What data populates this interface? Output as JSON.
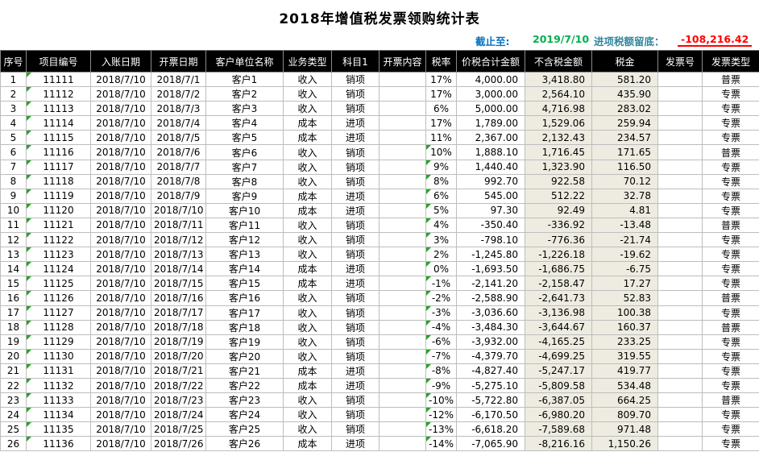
{
  "title": "2018年增值税发票领购统计表",
  "info": {
    "as_of_label": "截止至:",
    "as_of_date": "2019/7/10",
    "credit_label": "进项税额留底：",
    "credit_value": "-108,216.42"
  },
  "colors": {
    "header_bg": "#000000",
    "header_text": "#FFFFFF",
    "shaded_column": "#EEECE1",
    "grid_line": "#BDBDBD",
    "as_of_label_color": "#0070C0",
    "as_of_date_color": "#00B050",
    "credit_label_color": "#31869B",
    "credit_value_color": "#FF0000",
    "error_indicator_color": "#28A428"
  },
  "columns": [
    "序号",
    "项目编号",
    "入账日期",
    "开票日期",
    "客户单位名称",
    "业务类型",
    "科目1",
    "开票内容",
    "税率",
    "价税合计金额",
    "不含税金额",
    "税金",
    "发票号",
    "发票类型"
  ],
  "row_fields": [
    "seq",
    "project_no",
    "entry_date",
    "invoice_date",
    "customer",
    "biz_type",
    "subject",
    "content",
    "rate",
    "total_amount",
    "net_amount",
    "tax_amount",
    "invoice_no",
    "invoice_type"
  ],
  "rows": [
    {
      "seq": "1",
      "project_no": "11111",
      "entry_date": "2018/7/10",
      "invoice_date": "2018/7/1",
      "customer": "客户1",
      "biz_type": "收入",
      "subject": "销项",
      "content": "",
      "rate": "17%",
      "total_amount": "4,000.00",
      "net_amount": "3,418.80",
      "tax_amount": "581.20",
      "invoice_no": "",
      "invoice_type": "普票",
      "rate_flag": false
    },
    {
      "seq": "2",
      "project_no": "11112",
      "entry_date": "2018/7/10",
      "invoice_date": "2018/7/2",
      "customer": "客户2",
      "biz_type": "收入",
      "subject": "销项",
      "content": "",
      "rate": "17%",
      "total_amount": "3,000.00",
      "net_amount": "2,564.10",
      "tax_amount": "435.90",
      "invoice_no": "",
      "invoice_type": "专票",
      "rate_flag": false
    },
    {
      "seq": "3",
      "project_no": "11113",
      "entry_date": "2018/7/10",
      "invoice_date": "2018/7/3",
      "customer": "客户3",
      "biz_type": "收入",
      "subject": "销项",
      "content": "",
      "rate": "6%",
      "total_amount": "5,000.00",
      "net_amount": "4,716.98",
      "tax_amount": "283.02",
      "invoice_no": "",
      "invoice_type": "专票",
      "rate_flag": false
    },
    {
      "seq": "4",
      "project_no": "11114",
      "entry_date": "2018/7/10",
      "invoice_date": "2018/7/4",
      "customer": "客户4",
      "biz_type": "成本",
      "subject": "进项",
      "content": "",
      "rate": "17%",
      "total_amount": "1,789.00",
      "net_amount": "1,529.06",
      "tax_amount": "259.94",
      "invoice_no": "",
      "invoice_type": "专票",
      "rate_flag": false
    },
    {
      "seq": "5",
      "project_no": "11115",
      "entry_date": "2018/7/10",
      "invoice_date": "2018/7/5",
      "customer": "客户5",
      "biz_type": "成本",
      "subject": "进项",
      "content": "",
      "rate": "11%",
      "total_amount": "2,367.00",
      "net_amount": "2,132.43",
      "tax_amount": "234.57",
      "invoice_no": "",
      "invoice_type": "专票",
      "rate_flag": false
    },
    {
      "seq": "6",
      "project_no": "11116",
      "entry_date": "2018/7/10",
      "invoice_date": "2018/7/6",
      "customer": "客户6",
      "biz_type": "收入",
      "subject": "销项",
      "content": "",
      "rate": "10%",
      "total_amount": "1,888.10",
      "net_amount": "1,716.45",
      "tax_amount": "171.65",
      "invoice_no": "",
      "invoice_type": "普票",
      "rate_flag": true
    },
    {
      "seq": "7",
      "project_no": "11117",
      "entry_date": "2018/7/10",
      "invoice_date": "2018/7/7",
      "customer": "客户7",
      "biz_type": "收入",
      "subject": "销项",
      "content": "",
      "rate": "9%",
      "total_amount": "1,440.40",
      "net_amount": "1,323.90",
      "tax_amount": "116.50",
      "invoice_no": "",
      "invoice_type": "专票",
      "rate_flag": true
    },
    {
      "seq": "8",
      "project_no": "11118",
      "entry_date": "2018/7/10",
      "invoice_date": "2018/7/8",
      "customer": "客户8",
      "biz_type": "收入",
      "subject": "销项",
      "content": "",
      "rate": "8%",
      "total_amount": "992.70",
      "net_amount": "922.58",
      "tax_amount": "70.12",
      "invoice_no": "",
      "invoice_type": "专票",
      "rate_flag": true
    },
    {
      "seq": "9",
      "project_no": "11119",
      "entry_date": "2018/7/10",
      "invoice_date": "2018/7/9",
      "customer": "客户9",
      "biz_type": "成本",
      "subject": "进项",
      "content": "",
      "rate": "6%",
      "total_amount": "545.00",
      "net_amount": "512.22",
      "tax_amount": "32.78",
      "invoice_no": "",
      "invoice_type": "专票",
      "rate_flag": true
    },
    {
      "seq": "10",
      "project_no": "11120",
      "entry_date": "2018/7/10",
      "invoice_date": "2018/7/10",
      "customer": "客户10",
      "biz_type": "成本",
      "subject": "进项",
      "content": "",
      "rate": "5%",
      "total_amount": "97.30",
      "net_amount": "92.49",
      "tax_amount": "4.81",
      "invoice_no": "",
      "invoice_type": "专票",
      "rate_flag": true
    },
    {
      "seq": "11",
      "project_no": "11121",
      "entry_date": "2018/7/10",
      "invoice_date": "2018/7/11",
      "customer": "客户11",
      "biz_type": "收入",
      "subject": "销项",
      "content": "",
      "rate": "4%",
      "total_amount": "-350.40",
      "net_amount": "-336.92",
      "tax_amount": "-13.48",
      "invoice_no": "",
      "invoice_type": "普票",
      "rate_flag": true
    },
    {
      "seq": "12",
      "project_no": "11122",
      "entry_date": "2018/7/10",
      "invoice_date": "2018/7/12",
      "customer": "客户12",
      "biz_type": "收入",
      "subject": "销项",
      "content": "",
      "rate": "3%",
      "total_amount": "-798.10",
      "net_amount": "-776.36",
      "tax_amount": "-21.74",
      "invoice_no": "",
      "invoice_type": "专票",
      "rate_flag": true
    },
    {
      "seq": "13",
      "project_no": "11123",
      "entry_date": "2018/7/10",
      "invoice_date": "2018/7/13",
      "customer": "客户13",
      "biz_type": "收入",
      "subject": "销项",
      "content": "",
      "rate": "2%",
      "total_amount": "-1,245.80",
      "net_amount": "-1,226.18",
      "tax_amount": "-19.62",
      "invoice_no": "",
      "invoice_type": "专票",
      "rate_flag": true
    },
    {
      "seq": "14",
      "project_no": "11124",
      "entry_date": "2018/7/10",
      "invoice_date": "2018/7/14",
      "customer": "客户14",
      "biz_type": "成本",
      "subject": "进项",
      "content": "",
      "rate": "0%",
      "total_amount": "-1,693.50",
      "net_amount": "-1,686.75",
      "tax_amount": "-6.75",
      "invoice_no": "",
      "invoice_type": "专票",
      "rate_flag": true
    },
    {
      "seq": "15",
      "project_no": "11125",
      "entry_date": "2018/7/10",
      "invoice_date": "2018/7/15",
      "customer": "客户15",
      "biz_type": "成本",
      "subject": "进项",
      "content": "",
      "rate": "-1%",
      "total_amount": "-2,141.20",
      "net_amount": "-2,158.47",
      "tax_amount": "17.27",
      "invoice_no": "",
      "invoice_type": "专票",
      "rate_flag": true
    },
    {
      "seq": "16",
      "project_no": "11126",
      "entry_date": "2018/7/10",
      "invoice_date": "2018/7/16",
      "customer": "客户16",
      "biz_type": "收入",
      "subject": "销项",
      "content": "",
      "rate": "-2%",
      "total_amount": "-2,588.90",
      "net_amount": "-2,641.73",
      "tax_amount": "52.83",
      "invoice_no": "",
      "invoice_type": "普票",
      "rate_flag": true
    },
    {
      "seq": "17",
      "project_no": "11127",
      "entry_date": "2018/7/10",
      "invoice_date": "2018/7/17",
      "customer": "客户17",
      "biz_type": "收入",
      "subject": "销项",
      "content": "",
      "rate": "-3%",
      "total_amount": "-3,036.60",
      "net_amount": "-3,136.98",
      "tax_amount": "100.38",
      "invoice_no": "",
      "invoice_type": "专票",
      "rate_flag": true
    },
    {
      "seq": "18",
      "project_no": "11128",
      "entry_date": "2018/7/10",
      "invoice_date": "2018/7/18",
      "customer": "客户18",
      "biz_type": "收入",
      "subject": "销项",
      "content": "",
      "rate": "-4%",
      "total_amount": "-3,484.30",
      "net_amount": "-3,644.67",
      "tax_amount": "160.37",
      "invoice_no": "",
      "invoice_type": "普票",
      "rate_flag": true
    },
    {
      "seq": "19",
      "project_no": "11129",
      "entry_date": "2018/7/10",
      "invoice_date": "2018/7/19",
      "customer": "客户19",
      "biz_type": "收入",
      "subject": "销项",
      "content": "",
      "rate": "-6%",
      "total_amount": "-3,932.00",
      "net_amount": "-4,165.25",
      "tax_amount": "233.25",
      "invoice_no": "",
      "invoice_type": "专票",
      "rate_flag": true
    },
    {
      "seq": "20",
      "project_no": "11130",
      "entry_date": "2018/7/10",
      "invoice_date": "2018/7/20",
      "customer": "客户20",
      "biz_type": "收入",
      "subject": "销项",
      "content": "",
      "rate": "-7%",
      "total_amount": "-4,379.70",
      "net_amount": "-4,699.25",
      "tax_amount": "319.55",
      "invoice_no": "",
      "invoice_type": "专票",
      "rate_flag": true
    },
    {
      "seq": "21",
      "project_no": "11131",
      "entry_date": "2018/7/10",
      "invoice_date": "2018/7/21",
      "customer": "客户21",
      "biz_type": "成本",
      "subject": "进项",
      "content": "",
      "rate": "-8%",
      "total_amount": "-4,827.40",
      "net_amount": "-5,247.17",
      "tax_amount": "419.77",
      "invoice_no": "",
      "invoice_type": "专票",
      "rate_flag": true
    },
    {
      "seq": "22",
      "project_no": "11132",
      "entry_date": "2018/7/10",
      "invoice_date": "2018/7/22",
      "customer": "客户22",
      "biz_type": "成本",
      "subject": "进项",
      "content": "",
      "rate": "-9%",
      "total_amount": "-5,275.10",
      "net_amount": "-5,809.58",
      "tax_amount": "534.48",
      "invoice_no": "",
      "invoice_type": "专票",
      "rate_flag": true
    },
    {
      "seq": "23",
      "project_no": "11133",
      "entry_date": "2018/7/10",
      "invoice_date": "2018/7/23",
      "customer": "客户23",
      "biz_type": "收入",
      "subject": "销项",
      "content": "",
      "rate": "-10%",
      "total_amount": "-5,722.80",
      "net_amount": "-6,387.05",
      "tax_amount": "664.25",
      "invoice_no": "",
      "invoice_type": "普票",
      "rate_flag": true
    },
    {
      "seq": "24",
      "project_no": "11134",
      "entry_date": "2018/7/10",
      "invoice_date": "2018/7/24",
      "customer": "客户24",
      "biz_type": "收入",
      "subject": "销项",
      "content": "",
      "rate": "-12%",
      "total_amount": "-6,170.50",
      "net_amount": "-6,980.20",
      "tax_amount": "809.70",
      "invoice_no": "",
      "invoice_type": "专票",
      "rate_flag": true
    },
    {
      "seq": "25",
      "project_no": "11135",
      "entry_date": "2018/7/10",
      "invoice_date": "2018/7/25",
      "customer": "客户25",
      "biz_type": "收入",
      "subject": "销项",
      "content": "",
      "rate": "-13%",
      "total_amount": "-6,618.20",
      "net_amount": "-7,589.68",
      "tax_amount": "971.48",
      "invoice_no": "",
      "invoice_type": "专票",
      "rate_flag": true
    },
    {
      "seq": "26",
      "project_no": "11136",
      "entry_date": "2018/7/10",
      "invoice_date": "2018/7/26",
      "customer": "客户26",
      "biz_type": "成本",
      "subject": "进项",
      "content": "",
      "rate": "-14%",
      "total_amount": "-7,065.90",
      "net_amount": "-8,216.16",
      "tax_amount": "1,150.26",
      "invoice_no": "",
      "invoice_type": "专票",
      "rate_flag": true
    }
  ]
}
